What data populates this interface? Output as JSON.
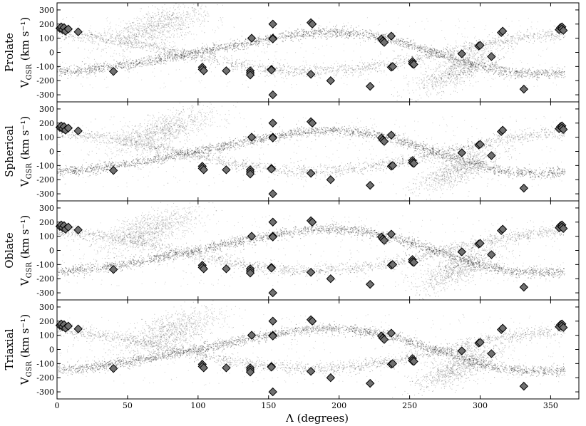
{
  "chart_data": {
    "type": "scatter",
    "layout": "4 vertically stacked panels sharing the x axis",
    "xlabel": "Λ (degrees)",
    "xlim": [
      0,
      370
    ],
    "xticks": [
      0,
      50,
      100,
      150,
      200,
      250,
      300,
      350
    ],
    "ylim": [
      -350,
      350
    ],
    "yticks": [
      -300,
      -200,
      -100,
      0,
      100,
      200,
      300
    ],
    "ylabel_main": "V",
    "ylabel_sub": "GSR",
    "ylabel_units": "(km s⁻¹)",
    "grid": false,
    "legend": "none",
    "colors": {
      "stream_points": "#000000",
      "observed_markers": "#707070",
      "marker_edge": "#000000"
    },
    "panels": [
      {
        "name": "Prolate",
        "streams": [
          {
            "phase": 0,
            "amp": 145,
            "leading_extra": [
              [
                0,
                140
              ],
              [
                40,
                150
              ],
              [
                90,
                190
              ],
              [
                100,
                200
              ]
            ]
          },
          {
            "band": [
              [
                60,
                260
              ],
              [
                90,
                300
              ],
              [
                100,
                240
              ]
            ]
          }
        ]
      },
      {
        "name": "Spherical",
        "streams": [
          {
            "phase": 0,
            "amp": 150,
            "leading_extra": [
              [
                30,
                150
              ],
              [
                70,
                260
              ],
              [
                100,
                300
              ]
            ]
          }
        ]
      },
      {
        "name": "Oblate",
        "streams": [
          {
            "phase": 0,
            "amp": 155,
            "leading_extra": [
              [
                50,
                100
              ],
              [
                70,
                250
              ],
              [
                85,
                320
              ]
            ]
          }
        ]
      },
      {
        "name": "Triaxial",
        "streams": [
          {
            "phase": 0,
            "amp": 150,
            "leading_extra": [
              [
                20,
                160
              ],
              [
                80,
                100
              ],
              [
                150,
                80
              ]
            ]
          }
        ]
      }
    ],
    "observed_points": [
      [
        2,
        170
      ],
      [
        3,
        180
      ],
      [
        4,
        160
      ],
      [
        5,
        175
      ],
      [
        6,
        150
      ],
      [
        8,
        165
      ],
      [
        15,
        145
      ],
      [
        40,
        -135
      ],
      [
        103,
        -105
      ],
      [
        103,
        -120
      ],
      [
        104,
        -130
      ],
      [
        120,
        -130
      ],
      [
        137,
        -130
      ],
      [
        137,
        -145
      ],
      [
        137,
        -160
      ],
      [
        138,
        100
      ],
      [
        152,
        -120
      ],
      [
        152,
        -125
      ],
      [
        153,
        200
      ],
      [
        153,
        100
      ],
      [
        153,
        95
      ],
      [
        153,
        -300
      ],
      [
        180,
        210
      ],
      [
        181,
        200
      ],
      [
        180,
        -155
      ],
      [
        194,
        -200
      ],
      [
        222,
        -240
      ],
      [
        230,
        95
      ],
      [
        231,
        80
      ],
      [
        232,
        70
      ],
      [
        237,
        115
      ],
      [
        237,
        -105
      ],
      [
        238,
        -100
      ],
      [
        252,
        -65
      ],
      [
        252,
        -80
      ],
      [
        253,
        -85
      ],
      [
        287,
        -10
      ],
      [
        299,
        45
      ],
      [
        300,
        50
      ],
      [
        308,
        -30
      ],
      [
        315,
        140
      ],
      [
        316,
        150
      ],
      [
        331,
        -260
      ],
      [
        356,
        160
      ],
      [
        357,
        175
      ],
      [
        358,
        180
      ],
      [
        358,
        165
      ],
      [
        359,
        155
      ]
    ]
  }
}
